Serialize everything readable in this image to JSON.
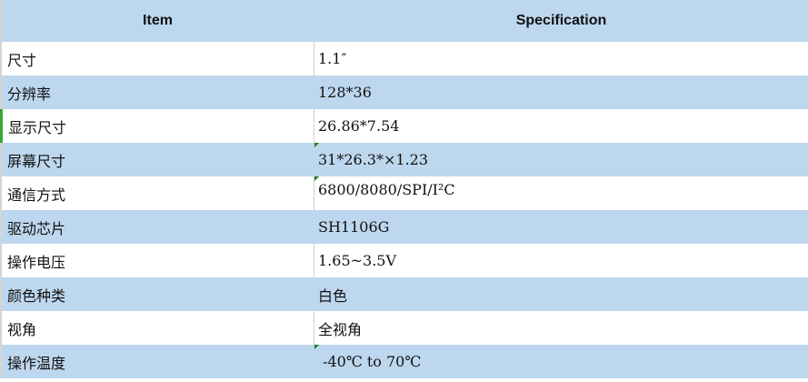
{
  "header": {
    "item": "Item",
    "specification": "Specification"
  },
  "colors": {
    "row_blue": "#bdd7ee",
    "note_marker": "#1f7a1f"
  },
  "rows": [
    {
      "item": "尺寸",
      "spec": "1.1″"
    },
    {
      "item": "分辨率",
      "spec": "128*36"
    },
    {
      "item": "显示尺寸",
      "spec": "26.86*7.54"
    },
    {
      "item": "屏幕尺寸",
      "spec": "31*26.3*×1.23"
    },
    {
      "item": "通信方式",
      "spec": "6800/8080/SPI/I²C"
    },
    {
      "item": "驱动芯片",
      "spec": "SH1106G"
    },
    {
      "item": "操作电压",
      "spec": "1.65~3.5V"
    },
    {
      "item": "颜色种类",
      "spec": "白色"
    },
    {
      "item": "视角",
      "spec": "全视角"
    },
    {
      "item": "操作温度",
      "spec": " -40℃ to 70℃"
    }
  ]
}
